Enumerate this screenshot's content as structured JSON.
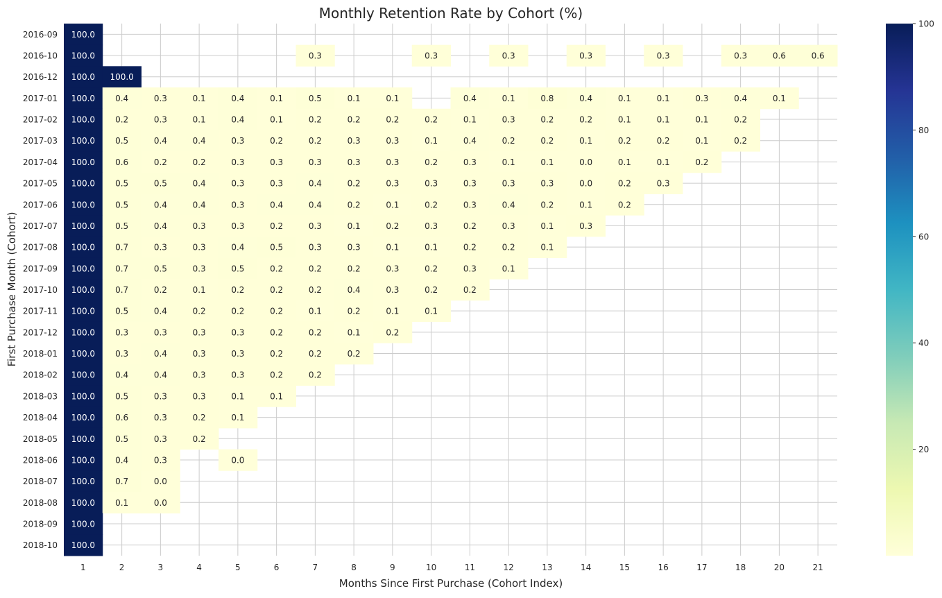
{
  "chart_data": {
    "type": "heatmap",
    "title": "Monthly Retention Rate by Cohort (%)",
    "xlabel": "Months Since First Purchase (Cohort Index)",
    "ylabel": "First Purchase Month (Cohort)",
    "x_categories": [
      "1",
      "2",
      "3",
      "4",
      "5",
      "6",
      "7",
      "8",
      "9",
      "10",
      "11",
      "12",
      "13",
      "14",
      "15",
      "16",
      "17",
      "18",
      "20",
      "21"
    ],
    "y_categories": [
      "2016-09",
      "2016-10",
      "2016-12",
      "2017-01",
      "2017-02",
      "2017-03",
      "2017-04",
      "2017-05",
      "2017-06",
      "2017-07",
      "2017-08",
      "2017-09",
      "2017-10",
      "2017-11",
      "2017-12",
      "2018-01",
      "2018-02",
      "2018-03",
      "2018-04",
      "2018-05",
      "2018-06",
      "2018-07",
      "2018-08",
      "2018-09",
      "2018-10"
    ],
    "values": [
      [
        100.0,
        null,
        null,
        null,
        null,
        null,
        null,
        null,
        null,
        null,
        null,
        null,
        null,
        null,
        null,
        null,
        null,
        null,
        null,
        null
      ],
      [
        100.0,
        null,
        null,
        null,
        null,
        null,
        0.3,
        null,
        null,
        0.3,
        null,
        0.3,
        null,
        0.3,
        null,
        0.3,
        null,
        0.3,
        0.6,
        0.6
      ],
      [
        100.0,
        100.0,
        null,
        null,
        null,
        null,
        null,
        null,
        null,
        null,
        null,
        null,
        null,
        null,
        null,
        null,
        null,
        null,
        null,
        null
      ],
      [
        100.0,
        0.4,
        0.3,
        0.1,
        0.4,
        0.1,
        0.5,
        0.1,
        0.1,
        null,
        0.4,
        0.1,
        0.8,
        0.4,
        0.1,
        0.1,
        0.3,
        0.4,
        0.1,
        null
      ],
      [
        100.0,
        0.2,
        0.3,
        0.1,
        0.4,
        0.1,
        0.2,
        0.2,
        0.2,
        0.2,
        0.1,
        0.3,
        0.2,
        0.2,
        0.1,
        0.1,
        0.1,
        0.2,
        null,
        null
      ],
      [
        100.0,
        0.5,
        0.4,
        0.4,
        0.3,
        0.2,
        0.2,
        0.3,
        0.3,
        0.1,
        0.4,
        0.2,
        0.2,
        0.1,
        0.2,
        0.2,
        0.1,
        0.2,
        null,
        null
      ],
      [
        100.0,
        0.6,
        0.2,
        0.2,
        0.3,
        0.3,
        0.3,
        0.3,
        0.3,
        0.2,
        0.3,
        0.1,
        0.1,
        0.0,
        0.1,
        0.1,
        0.2,
        null,
        null,
        null
      ],
      [
        100.0,
        0.5,
        0.5,
        0.4,
        0.3,
        0.3,
        0.4,
        0.2,
        0.3,
        0.3,
        0.3,
        0.3,
        0.3,
        0.0,
        0.2,
        0.3,
        null,
        null,
        null,
        null
      ],
      [
        100.0,
        0.5,
        0.4,
        0.4,
        0.3,
        0.4,
        0.4,
        0.2,
        0.1,
        0.2,
        0.3,
        0.4,
        0.2,
        0.1,
        0.2,
        null,
        null,
        null,
        null,
        null
      ],
      [
        100.0,
        0.5,
        0.4,
        0.3,
        0.3,
        0.2,
        0.3,
        0.1,
        0.2,
        0.3,
        0.2,
        0.3,
        0.1,
        0.3,
        null,
        null,
        null,
        null,
        null,
        null
      ],
      [
        100.0,
        0.7,
        0.3,
        0.3,
        0.4,
        0.5,
        0.3,
        0.3,
        0.1,
        0.1,
        0.2,
        0.2,
        0.1,
        null,
        null,
        null,
        null,
        null,
        null,
        null
      ],
      [
        100.0,
        0.7,
        0.5,
        0.3,
        0.5,
        0.2,
        0.2,
        0.2,
        0.3,
        0.2,
        0.3,
        0.1,
        null,
        null,
        null,
        null,
        null,
        null,
        null,
        null
      ],
      [
        100.0,
        0.7,
        0.2,
        0.1,
        0.2,
        0.2,
        0.2,
        0.4,
        0.3,
        0.2,
        0.2,
        null,
        null,
        null,
        null,
        null,
        null,
        null,
        null,
        null
      ],
      [
        100.0,
        0.5,
        0.4,
        0.2,
        0.2,
        0.2,
        0.1,
        0.2,
        0.1,
        0.1,
        null,
        null,
        null,
        null,
        null,
        null,
        null,
        null,
        null,
        null
      ],
      [
        100.0,
        0.3,
        0.3,
        0.3,
        0.3,
        0.2,
        0.2,
        0.1,
        0.2,
        null,
        null,
        null,
        null,
        null,
        null,
        null,
        null,
        null,
        null,
        null
      ],
      [
        100.0,
        0.3,
        0.4,
        0.3,
        0.3,
        0.2,
        0.2,
        0.2,
        null,
        null,
        null,
        null,
        null,
        null,
        null,
        null,
        null,
        null,
        null,
        null
      ],
      [
        100.0,
        0.4,
        0.4,
        0.3,
        0.3,
        0.2,
        0.2,
        null,
        null,
        null,
        null,
        null,
        null,
        null,
        null,
        null,
        null,
        null,
        null,
        null
      ],
      [
        100.0,
        0.5,
        0.3,
        0.3,
        0.1,
        0.1,
        null,
        null,
        null,
        null,
        null,
        null,
        null,
        null,
        null,
        null,
        null,
        null,
        null,
        null
      ],
      [
        100.0,
        0.6,
        0.3,
        0.2,
        0.1,
        null,
        null,
        null,
        null,
        null,
        null,
        null,
        null,
        null,
        null,
        null,
        null,
        null,
        null,
        null
      ],
      [
        100.0,
        0.5,
        0.3,
        0.2,
        null,
        null,
        null,
        null,
        null,
        null,
        null,
        null,
        null,
        null,
        null,
        null,
        null,
        null,
        null,
        null
      ],
      [
        100.0,
        0.4,
        0.3,
        null,
        0.0,
        null,
        null,
        null,
        null,
        null,
        null,
        null,
        null,
        null,
        null,
        null,
        null,
        null,
        null,
        null
      ],
      [
        100.0,
        0.7,
        0.0,
        null,
        null,
        null,
        null,
        null,
        null,
        null,
        null,
        null,
        null,
        null,
        null,
        null,
        null,
        null,
        null,
        null
      ],
      [
        100.0,
        0.1,
        0.0,
        null,
        null,
        null,
        null,
        null,
        null,
        null,
        null,
        null,
        null,
        null,
        null,
        null,
        null,
        null,
        null,
        null
      ],
      [
        100.0,
        null,
        null,
        null,
        null,
        null,
        null,
        null,
        null,
        null,
        null,
        null,
        null,
        null,
        null,
        null,
        null,
        null,
        null,
        null
      ],
      [
        100.0,
        null,
        null,
        null,
        null,
        null,
        null,
        null,
        null,
        null,
        null,
        null,
        null,
        null,
        null,
        null,
        null,
        null,
        null,
        null
      ]
    ],
    "colorbar": {
      "colormap": "YlGnBu",
      "range": [
        0,
        100
      ],
      "ticks": [
        "20",
        "40",
        "60",
        "80",
        "100"
      ]
    },
    "grid": true,
    "annotation_format": "0.1f"
  }
}
